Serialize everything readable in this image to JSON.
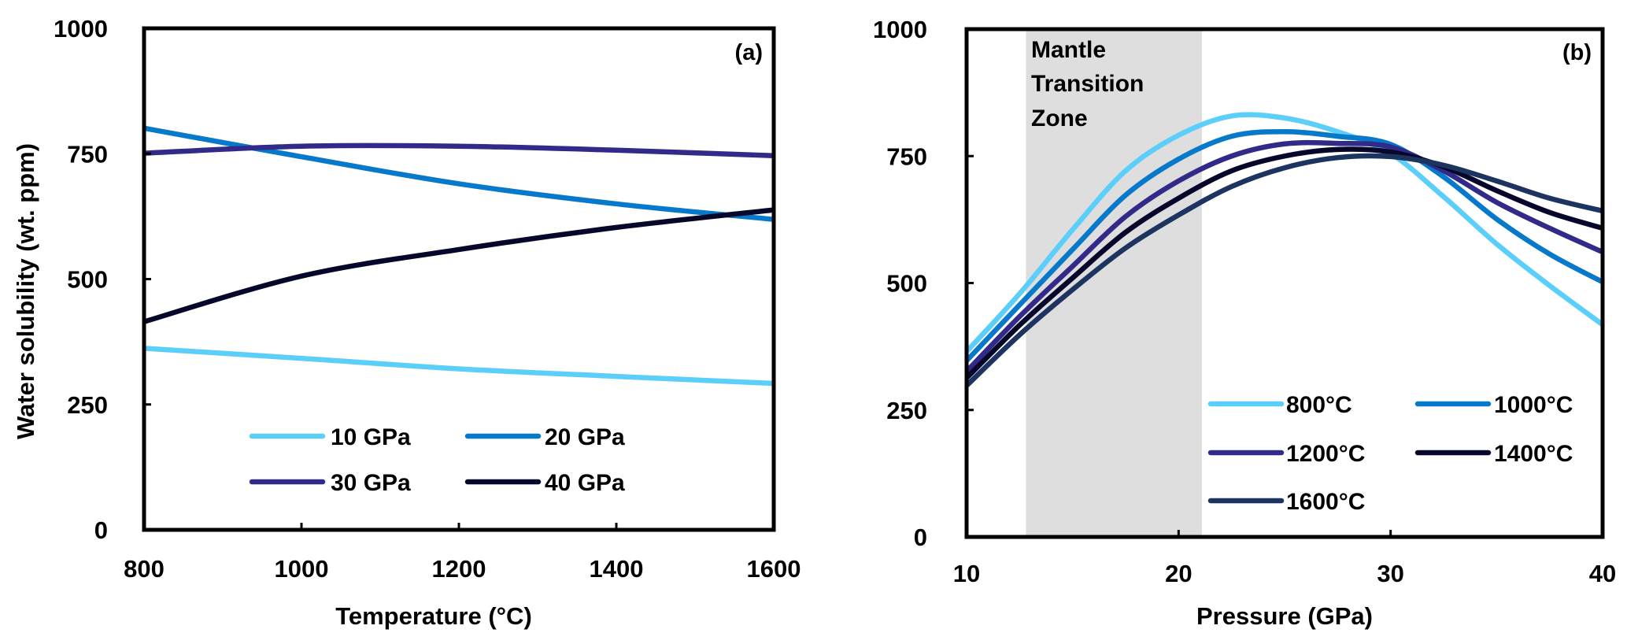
{
  "chart_data": [
    {
      "type": "line",
      "panel_label": "(a)",
      "xlabel": "Temperature (°C)",
      "ylabel": "Water solubility (wt. ppm)",
      "xlim": [
        800,
        1600
      ],
      "ylim": [
        0,
        1000
      ],
      "xticks": [
        800,
        1000,
        1200,
        1400,
        1600
      ],
      "yticks": [
        0,
        250,
        500,
        750,
        1000
      ],
      "grid": false,
      "legend_position": "bottom-center",
      "legend_columns": 2,
      "x": [
        800,
        1000,
        1200,
        1400,
        1600
      ],
      "series": [
        {
          "name": "10 GPa",
          "color": "#5BCEFA",
          "values": [
            362,
            342,
            321,
            306,
            292
          ]
        },
        {
          "name": "20 GPa",
          "color": "#0779CA",
          "values": [
            801,
            744,
            690,
            650,
            619
          ]
        },
        {
          "name": "30 GPa",
          "color": "#312A88",
          "values": [
            751,
            765,
            765,
            757,
            746
          ]
        },
        {
          "name": "40 GPa",
          "color": "#07072B",
          "values": [
            415,
            506,
            559,
            603,
            638
          ]
        }
      ]
    },
    {
      "type": "line",
      "panel_label": "(b)",
      "xlabel": "Pressure (GPa)",
      "ylabel": "",
      "xlim": [
        10,
        40
      ],
      "ylim": [
        0,
        1000
      ],
      "xticks": [
        10,
        20,
        30,
        40
      ],
      "yticks": [
        0,
        250,
        500,
        750,
        1000
      ],
      "grid": false,
      "legend_position": "bottom-right",
      "legend_columns": 2,
      "shaded_region": {
        "label": [
          "Mantle",
          "Transition",
          "Zone"
        ],
        "x_range": [
          12.8,
          21.1
        ],
        "color": "#DEDEDE"
      },
      "x": [
        10,
        12.5,
        15,
        17.5,
        20,
        22.5,
        25,
        27.5,
        30,
        32.5,
        35,
        37.5,
        40
      ],
      "series": [
        {
          "name": "800°C",
          "color": "#5BCEFA",
          "values": [
            365,
            479,
            605,
            721,
            791,
            829,
            825,
            798,
            755,
            670,
            577,
            495,
            418
          ]
        },
        {
          "name": "1000°C",
          "color": "#0779CA",
          "values": [
            347,
            457,
            566,
            673,
            744,
            789,
            798,
            789,
            773,
            709,
            626,
            557,
            502
          ]
        },
        {
          "name": "1200°C",
          "color": "#312A88",
          "values": [
            326,
            434,
            533,
            631,
            701,
            750,
            774,
            775,
            768,
            721,
            659,
            608,
            561
          ]
        },
        {
          "name": "1400°C",
          "color": "#07072B",
          "values": [
            313,
            417,
            510,
            600,
            667,
            721,
            750,
            763,
            758,
            729,
            682,
            639,
            608
          ]
        },
        {
          "name": "1600°C",
          "color": "#1D3460",
          "values": [
            298,
            398,
            487,
            569,
            634,
            690,
            727,
            747,
            749,
            732,
            701,
            667,
            642
          ]
        }
      ]
    }
  ]
}
